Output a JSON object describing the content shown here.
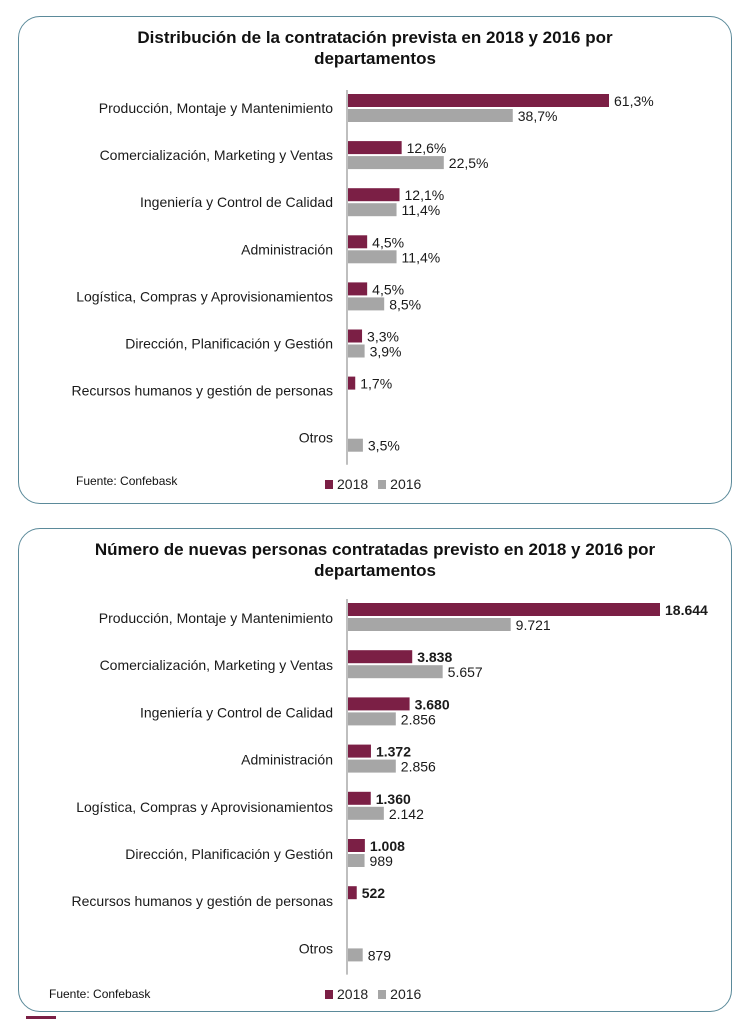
{
  "colors": {
    "2018": "#7b1f45",
    "2016": "#a6a6a6",
    "border": "#5b8a9a"
  },
  "chart_data": [
    {
      "type": "bar",
      "orientation": "horizontal",
      "title": "Distribución de la contratación prevista en 2018 y 2016 por departamentos",
      "source": "Fuente: Confebask",
      "categories": [
        "Producción, Montaje y Mantenimiento",
        "Comercialización, Marketing y Ventas",
        "Ingeniería y Control de Calidad",
        "Administración",
        "Logística, Compras y Aprovisionamientos",
        "Dirección, Planificación y Gestión",
        "Recursos humanos y gestión de personas",
        "Otros"
      ],
      "series": [
        {
          "name": "2018",
          "values": [
            61.3,
            12.6,
            12.1,
            4.5,
            4.5,
            3.3,
            1.7,
            null
          ],
          "labels": [
            "61,3%",
            "12,6%",
            "12,1%",
            "4,5%",
            "4,5%",
            "3,3%",
            "1,7%",
            ""
          ]
        },
        {
          "name": "2016",
          "values": [
            38.7,
            22.5,
            11.4,
            11.4,
            8.5,
            3.9,
            null,
            3.5
          ],
          "labels": [
            "38,7%",
            "22,5%",
            "11,4%",
            "11,4%",
            "8,5%",
            "3,9%",
            "",
            "3,5%"
          ]
        }
      ],
      "legend": [
        "2018",
        "2016"
      ],
      "legend_position": "bottom"
    },
    {
      "type": "bar",
      "orientation": "horizontal",
      "title": "Número de nuevas personas contratadas previsto en 2018 y 2016 por departamentos",
      "source": "Fuente: Confebask",
      "categories": [
        "Producción, Montaje y Mantenimiento",
        "Comercialización, Marketing y Ventas",
        "Ingeniería y Control de Calidad",
        "Administración",
        "Logística, Compras y Aprovisionamientos",
        "Dirección, Planificación y Gestión",
        "Recursos humanos y gestión de personas",
        "Otros"
      ],
      "series": [
        {
          "name": "2018",
          "values": [
            18644,
            3838,
            3680,
            1372,
            1360,
            1008,
            522,
            null
          ],
          "labels": [
            "18.644",
            "3.838",
            "3.680",
            "1.372",
            "1.360",
            "1.008",
            "522",
            ""
          ]
        },
        {
          "name": "2016",
          "values": [
            9721,
            5657,
            2856,
            2856,
            2142,
            989,
            null,
            879
          ],
          "labels": [
            "9.721",
            "5.657",
            "2.856",
            "2.856",
            "2.142",
            "989",
            "",
            "879"
          ]
        }
      ],
      "legend": [
        "2018",
        "2016"
      ],
      "legend_position": "bottom"
    }
  ]
}
